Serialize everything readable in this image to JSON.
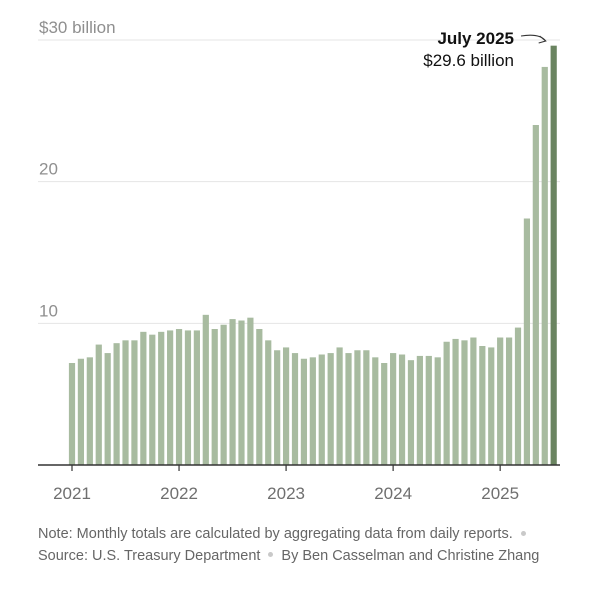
{
  "chart_data": {
    "type": "bar",
    "title": "",
    "xlabel": "",
    "ylabel": "",
    "ylim": [
      0,
      30
    ],
    "yticks": [
      {
        "value": 10,
        "label": "10"
      },
      {
        "value": 20,
        "label": "20"
      },
      {
        "value": 30,
        "label": "$30 billion"
      }
    ],
    "xticks": [
      "2021",
      "2022",
      "2023",
      "2024",
      "2025"
    ],
    "grid": true,
    "legend": "none",
    "bar_color": "#a8bba0",
    "highlight_color": "#6a8460",
    "series": [
      {
        "values": [
          7.2,
          7.5,
          7.6,
          8.5,
          7.9,
          8.6,
          8.8,
          8.8,
          9.4,
          9.2,
          9.4,
          9.5,
          9.6,
          9.5,
          9.5,
          10.6,
          9.6,
          9.9,
          10.3,
          10.2,
          10.4,
          9.6,
          8.8,
          8.1,
          8.3,
          7.9,
          7.5,
          7.6,
          7.8,
          7.9,
          8.3,
          7.9,
          8.1,
          8.1,
          7.6,
          7.2,
          7.9,
          7.8,
          7.4,
          7.7,
          7.7,
          7.6,
          8.7,
          8.9,
          8.8,
          9.0,
          8.4,
          8.3,
          9.0,
          9.0,
          9.7,
          17.4,
          24.0,
          28.1,
          29.6
        ]
      }
    ],
    "highlight": {
      "index": 54,
      "date_label": "July 2025",
      "value_label": "$29.6 billion"
    }
  },
  "note": {
    "text": "Note: Monthly totals are calculated by aggregating data from daily reports.",
    "source": "Source: U.S. Treasury Department",
    "byline": "By Ben Casselman and Christine Zhang"
  }
}
